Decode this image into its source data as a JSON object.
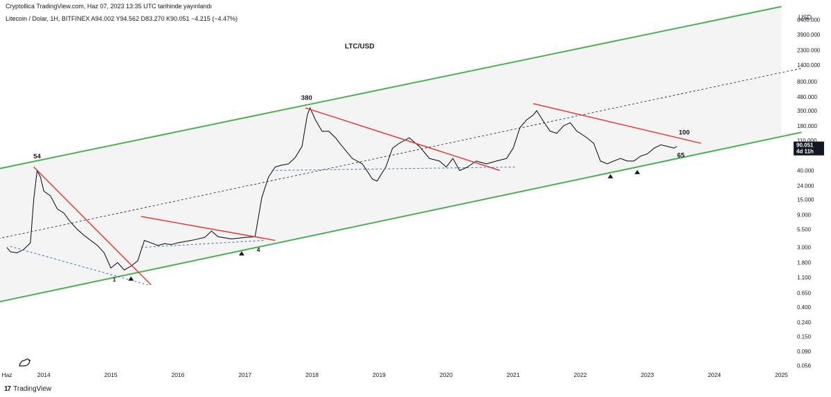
{
  "header": {
    "publish_info": "Cryptollica TradingView.com, Haz 07, 2023 13:35 UTC tarihinde yayınlandı",
    "symbol_info": "Litecoin / Dolar, 1H, BITFINEX  A94.002  Y94.562  D83.270  K90.051  −4.215 (−4.47%)"
  },
  "footer": {
    "brand": "TradingView"
  },
  "chart_data": {
    "type": "line",
    "title": "LTC/USD",
    "currency_label": "USD",
    "scale": "log",
    "ylim": [
      0.045,
      9000
    ],
    "xlim": [
      2013.45,
      2025.15
    ],
    "y_ticks": [
      6400,
      3900,
      2300,
      1400,
      800,
      480,
      300,
      180,
      110,
      40,
      24,
      15,
      9,
      5.5,
      3,
      1.8,
      1.1,
      0.65,
      0.4,
      0.24,
      0.15,
      0.09,
      0.056
    ],
    "y_tick_labels": [
      "6400.000",
      "3900.000",
      "2300.000",
      "1400.000",
      "800.000",
      "480.000",
      "300.000",
      "180.000",
      "110.000",
      "40.000",
      "24.000",
      "15.000",
      "9.000",
      "5.500",
      "3.000",
      "1.800",
      "1.100",
      "0.650",
      "0.400",
      "0.240",
      "0.150",
      "0.090",
      "0.056"
    ],
    "x_ticks": [
      {
        "x": 2013.45,
        "label": "Haz"
      },
      {
        "x": 2014.0,
        "label": "2014"
      },
      {
        "x": 2015.0,
        "label": "2015"
      },
      {
        "x": 2016.0,
        "label": "2016"
      },
      {
        "x": 2017.0,
        "label": "2017"
      },
      {
        "x": 2018.0,
        "label": "2018"
      },
      {
        "x": 2019.0,
        "label": "2019"
      },
      {
        "x": 2020.0,
        "label": "2020"
      },
      {
        "x": 2021.0,
        "label": "2021"
      },
      {
        "x": 2022.0,
        "label": "2022"
      },
      {
        "x": 2023.0,
        "label": "2023"
      },
      {
        "x": 2024.0,
        "label": "2024"
      },
      {
        "x": 2025.0,
        "label": "2025"
      }
    ],
    "last_price": {
      "value": 90.051,
      "label": "90.051",
      "countdown": "4d 11h",
      "color": "#131722"
    },
    "series": [
      {
        "color": "#131722",
        "x": [
          2013.45,
          2013.5,
          2013.6,
          2013.7,
          2013.8,
          2013.85,
          2013.9,
          2013.95,
          2014.0,
          2014.1,
          2014.2,
          2014.3,
          2014.4,
          2014.5,
          2014.6,
          2014.7,
          2014.8,
          2014.9,
          2015.0,
          2015.1,
          2015.2,
          2015.3,
          2015.4,
          2015.5,
          2015.6,
          2015.7,
          2015.8,
          2015.9,
          2016.0,
          2016.2,
          2016.4,
          2016.5,
          2016.6,
          2016.8,
          2017.0,
          2017.15,
          2017.25,
          2017.35,
          2017.45,
          2017.55,
          2017.65,
          2017.75,
          2017.85,
          2017.93,
          2017.97,
          2018.05,
          2018.15,
          2018.25,
          2018.35,
          2018.45,
          2018.6,
          2018.75,
          2018.9,
          2018.97,
          2019.1,
          2019.2,
          2019.3,
          2019.45,
          2019.6,
          2019.75,
          2019.9,
          2020.0,
          2020.1,
          2020.2,
          2020.3,
          2020.45,
          2020.6,
          2020.75,
          2020.9,
          2021.0,
          2021.1,
          2021.2,
          2021.3,
          2021.35,
          2021.45,
          2021.55,
          2021.65,
          2021.75,
          2021.85,
          2021.95,
          2022.0,
          2022.1,
          2022.2,
          2022.3,
          2022.4,
          2022.5,
          2022.6,
          2022.7,
          2022.8,
          2022.9,
          2023.0,
          2023.1,
          2023.2,
          2023.3,
          2023.4,
          2023.44
        ],
        "values": [
          3.0,
          2.6,
          2.5,
          2.8,
          3.5,
          15,
          40,
          32,
          20,
          17,
          11,
          9.5,
          7,
          5.5,
          4.5,
          3.8,
          3.2,
          2.5,
          1.5,
          1.8,
          1.4,
          1.6,
          1.9,
          3.8,
          3.5,
          3.2,
          3.4,
          3.3,
          3.5,
          3.8,
          4.2,
          5.2,
          4.3,
          4.0,
          4.2,
          4.3,
          16,
          32,
          45,
          48,
          50,
          62,
          90,
          260,
          330,
          220,
          150,
          150,
          120,
          90,
          60,
          50,
          30,
          28,
          45,
          85,
          100,
          120,
          90,
          60,
          55,
          45,
          60,
          40,
          44,
          55,
          50,
          55,
          60,
          85,
          170,
          220,
          260,
          300,
          210,
          150,
          140,
          180,
          200,
          150,
          140,
          120,
          100,
          55,
          50,
          55,
          60,
          55,
          55,
          65,
          70,
          85,
          95,
          90,
          85,
          90
        ]
      }
    ],
    "channel": {
      "color": "#4caf50",
      "upper": {
        "x1": 2013.2,
        "y1": 40,
        "x2": 2025.0,
        "y2": 10000
      },
      "lower": {
        "x1": 2013.2,
        "y1": 0.45,
        "x2": 2025.3,
        "y2": 145
      },
      "mid": {
        "x1": 2013.2,
        "y1": 3.8,
        "x2": 2025.3,
        "y2": 1250
      }
    },
    "trendlines": [
      {
        "color": "#e53935",
        "x1": 2013.85,
        "y1": 45,
        "x2": 2015.6,
        "y2": 0.85
      },
      {
        "color": "#e53935",
        "x1": 2015.45,
        "y1": 8.5,
        "x2": 2017.45,
        "y2": 3.8
      },
      {
        "color": "#e53935",
        "x1": 2017.9,
        "y1": 330,
        "x2": 2020.8,
        "y2": 40
      },
      {
        "color": "#e53935",
        "x1": 2021.3,
        "y1": 380,
        "x2": 2023.8,
        "y2": 100
      }
    ],
    "dashed_supports": [
      {
        "color": "#3f6fb0",
        "x1": 2013.5,
        "y1": 3.1,
        "x2": 2015.55,
        "y2": 0.85
      },
      {
        "color": "#3f6fb0",
        "x1": 2015.45,
        "y1": 3.0,
        "x2": 2017.3,
        "y2": 3.8
      },
      {
        "color": "#3f6fb0",
        "x1": 2017.4,
        "y1": 40,
        "x2": 2021.05,
        "y2": 45
      }
    ],
    "annotations": [
      {
        "text": "54",
        "x": 2013.9,
        "y": 60
      },
      {
        "text": "380",
        "x": 2017.92,
        "y": 430
      },
      {
        "text": "100",
        "x": 2023.55,
        "y": 135
      },
      {
        "text": "65",
        "x": 2023.5,
        "y": 62
      },
      {
        "text": "1",
        "x": 2015.05,
        "y": 0.95
      },
      {
        "text": "4",
        "x": 2017.2,
        "y": 2.6
      }
    ],
    "markers": [
      {
        "x": 2015.3,
        "y": 1.05
      },
      {
        "x": 2016.95,
        "y": 2.45
      },
      {
        "x": 2022.45,
        "y": 33
      },
      {
        "x": 2022.85,
        "y": 38
      }
    ]
  }
}
